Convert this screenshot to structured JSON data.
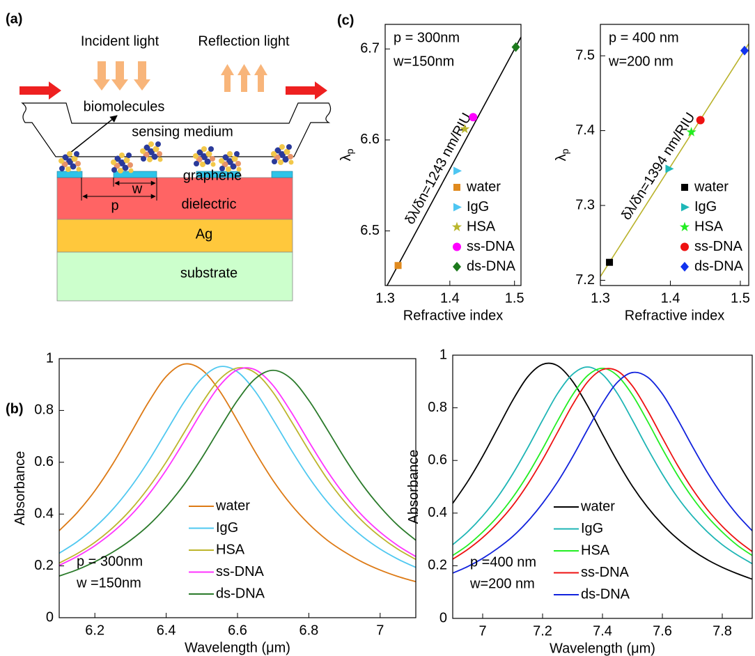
{
  "panel_labels": [
    "(a)",
    "(b)",
    "(c)"
  ],
  "diagram": {
    "incident": "Incident light",
    "reflection": "Reflection light",
    "biomolecules": "biomolecules",
    "sensing": "sensing medium",
    "graphene": "graphene",
    "w": "w",
    "p": "p",
    "dielectric": "dielectric",
    "ag": "Ag",
    "substrate": "substrate"
  },
  "chart_data": [
    {
      "type": "scatter",
      "xlabel": "Refractive index",
      "ylabel": "λ",
      "ylabel_sub": "p",
      "xlim": [
        1.3,
        1.51
      ],
      "ylim": [
        6.44,
        6.727
      ],
      "xticks": [
        1.3,
        1.4,
        1.5
      ],
      "yticks": [
        6.5,
        6.6,
        6.7
      ],
      "legend": "lower right",
      "annotations": [
        "p = 300nm",
        "w=150nm"
      ],
      "fit": {
        "label": "δλ/δn=1243 nm/RIU",
        "color": "#000000",
        "x": [
          1.303,
          1.51
        ],
        "values": [
          6.44,
          6.713
        ]
      },
      "series": [
        {
          "name": "water",
          "color": "#e08a1e",
          "marker": "square",
          "x": [
            1.32
          ],
          "values": [
            6.462
          ]
        },
        {
          "name": "IgG",
          "color": "#4ec6f2",
          "marker": "triangle",
          "x": [
            1.411
          ],
          "values": [
            6.566
          ]
        },
        {
          "name": "HSA",
          "color": "#bab62c",
          "marker": "star",
          "x": [
            1.423
          ],
          "values": [
            6.612
          ]
        },
        {
          "name": "ss-DNA",
          "color": "#ff00ff",
          "marker": "circle",
          "x": [
            1.436
          ],
          "values": [
            6.625
          ]
        },
        {
          "name": "ds-DNA",
          "color": "#1d7a1d",
          "marker": "diamond",
          "x": [
            1.502
          ],
          "values": [
            6.702
          ]
        }
      ]
    },
    {
      "type": "scatter",
      "xlabel": "Refractive index",
      "ylabel": "λ",
      "ylabel_sub": "p",
      "xlim": [
        1.3,
        1.512
      ],
      "ylim": [
        7.193,
        7.542
      ],
      "xticks": [
        1.3,
        1.4,
        1.5
      ],
      "yticks": [
        7.2,
        7.3,
        7.4,
        7.5
      ],
      "legend": "lower right",
      "annotations": [
        "p = 400 nm",
        "w=200 nm"
      ],
      "fit": {
        "label": "δλ/δn=1394 nm/RIU",
        "color": "#b9b22a",
        "x": [
          1.3,
          1.512
        ],
        "values": [
          7.205,
          7.516
        ]
      },
      "series": [
        {
          "name": "water",
          "color": "#000000",
          "marker": "square",
          "x": [
            1.313
          ],
          "values": [
            7.224
          ]
        },
        {
          "name": "IgG",
          "color": "#1fb8b8",
          "marker": "triangle",
          "x": [
            1.398
          ],
          "values": [
            7.349
          ]
        },
        {
          "name": "HSA",
          "color": "#22ee22",
          "marker": "star",
          "x": [
            1.43
          ],
          "values": [
            7.398
          ]
        },
        {
          "name": "ss-DNA",
          "color": "#ee1111",
          "marker": "circle",
          "x": [
            1.443
          ],
          "values": [
            7.414
          ]
        },
        {
          "name": "ds-DNA",
          "color": "#1133ee",
          "marker": "diamond",
          "x": [
            1.506
          ],
          "values": [
            7.507
          ]
        }
      ]
    },
    {
      "type": "line",
      "xlabel": "Wavelength (μm)",
      "ylabel": "Absorbance",
      "xlim": [
        6.1,
        7.1
      ],
      "ylim": [
        0,
        1
      ],
      "xticks": [
        6.2,
        6.4,
        6.6,
        6.8,
        7
      ],
      "yticks": [
        0,
        0.2,
        0.4,
        0.6,
        0.8,
        1
      ],
      "legend": "lower center",
      "annotations": [
        "p = 300nm",
        "w =150nm"
      ],
      "x": [
        6.1,
        6.15,
        6.2,
        6.25,
        6.3,
        6.35,
        6.4,
        6.45,
        6.5,
        6.55,
        6.6,
        6.65,
        6.7,
        6.75,
        6.8,
        6.85,
        6.9,
        6.95,
        7.0,
        7.05,
        7.1
      ],
      "series": [
        {
          "name": "water",
          "color": "#dd7a15",
          "values": [
            0.336,
            0.405,
            0.49,
            0.593,
            0.711,
            0.831,
            0.931,
            0.979,
            0.957,
            0.875,
            0.76,
            0.639,
            0.529,
            0.437,
            0.362,
            0.301,
            0.254,
            0.215,
            0.184,
            0.159,
            0.139
          ]
        },
        {
          "name": "IgG",
          "color": "#4fc8f0",
          "values": [
            0.249,
            0.293,
            0.349,
            0.418,
            0.503,
            0.604,
            0.718,
            0.832,
            0.924,
            0.969,
            0.949,
            0.873,
            0.764,
            0.649,
            0.542,
            0.45,
            0.375,
            0.314,
            0.265,
            0.226,
            0.194
          ]
        },
        {
          "name": "HSA",
          "color": "#bdb52c",
          "values": [
            0.211,
            0.247,
            0.291,
            0.347,
            0.416,
            0.501,
            0.601,
            0.714,
            0.828,
            0.92,
            0.964,
            0.945,
            0.869,
            0.76,
            0.646,
            0.539,
            0.448,
            0.373,
            0.313,
            0.264,
            0.225
          ]
        },
        {
          "name": "ss-DNA",
          "color": "#ff33ff",
          "values": [
            0.202,
            0.236,
            0.278,
            0.33,
            0.394,
            0.474,
            0.57,
            0.68,
            0.795,
            0.896,
            0.957,
            0.957,
            0.896,
            0.795,
            0.68,
            0.57,
            0.474,
            0.394,
            0.33,
            0.278,
            0.236
          ]
        },
        {
          "name": "ds-DNA",
          "color": "#2a7a2a",
          "values": [
            0.161,
            0.185,
            0.216,
            0.253,
            0.299,
            0.356,
            0.428,
            0.514,
            0.617,
            0.73,
            0.839,
            0.923,
            0.955,
            0.923,
            0.839,
            0.73,
            0.617,
            0.514,
            0.428,
            0.356,
            0.299
          ]
        }
      ]
    },
    {
      "type": "line",
      "xlabel": "Wavelength (μm)",
      "ylabel": "Absorbance",
      "xlim": [
        6.9,
        7.9
      ],
      "ylim": [
        0,
        1
      ],
      "xticks": [
        7,
        7.2,
        7.4,
        7.6,
        7.8
      ],
      "yticks": [
        0,
        0.2,
        0.4,
        0.6,
        0.8,
        1
      ],
      "legend": "lower center",
      "annotations": [
        "p =400 nm",
        "w=200 nm"
      ],
      "x": [
        6.9,
        6.95,
        7.0,
        7.05,
        7.1,
        7.15,
        7.2,
        7.25,
        7.3,
        7.35,
        7.4,
        7.45,
        7.5,
        7.55,
        7.6,
        7.65,
        7.7,
        7.75,
        7.8,
        7.85,
        7.9
      ],
      "series": [
        {
          "name": "water",
          "color": "#000000",
          "values": [
            0.437,
            0.52,
            0.616,
            0.722,
            0.828,
            0.917,
            0.965,
            0.96,
            0.901,
            0.808,
            0.7,
            0.596,
            0.502,
            0.423,
            0.357,
            0.303,
            0.259,
            0.223,
            0.194,
            0.17,
            0.149
          ]
        },
        {
          "name": "IgG",
          "color": "#1db5b5",
          "values": [
            0.28,
            0.329,
            0.389,
            0.461,
            0.548,
            0.647,
            0.753,
            0.854,
            0.927,
            0.955,
            0.927,
            0.854,
            0.753,
            0.647,
            0.548,
            0.461,
            0.389,
            0.329,
            0.28,
            0.241,
            0.208
          ]
        },
        {
          "name": "HSA",
          "color": "#22ee22",
          "values": [
            0.239,
            0.278,
            0.328,
            0.387,
            0.459,
            0.545,
            0.644,
            0.75,
            0.849,
            0.922,
            0.95,
            0.922,
            0.849,
            0.75,
            0.644,
            0.545,
            0.459,
            0.387,
            0.328,
            0.278,
            0.239
          ]
        },
        {
          "name": "ss-DNA",
          "color": "#ee1111",
          "values": [
            0.225,
            0.262,
            0.307,
            0.362,
            0.428,
            0.509,
            0.603,
            0.707,
            0.811,
            0.898,
            0.945,
            0.94,
            0.883,
            0.791,
            0.686,
            0.583,
            0.492,
            0.414,
            0.35,
            0.297,
            0.254
          ]
        },
        {
          "name": "ds-DNA",
          "color": "#1122dd",
          "values": [
            0.172,
            0.197,
            0.228,
            0.266,
            0.311,
            0.368,
            0.437,
            0.518,
            0.613,
            0.717,
            0.817,
            0.897,
            0.934,
            0.917,
            0.853,
            0.758,
            0.654,
            0.555,
            0.468,
            0.394,
            0.333
          ]
        }
      ]
    }
  ]
}
